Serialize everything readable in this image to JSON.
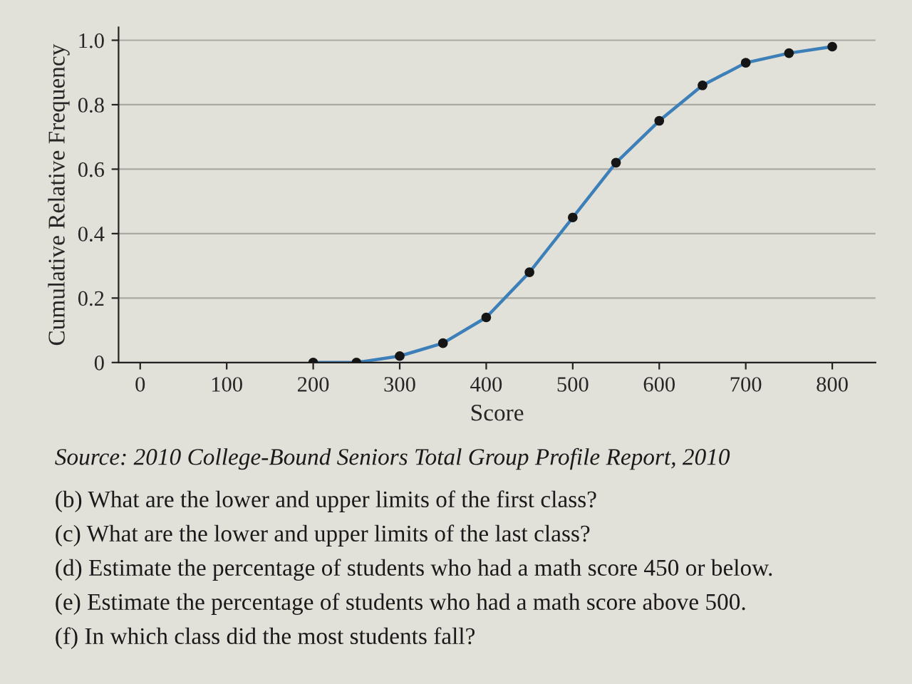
{
  "chart_data": {
    "type": "line",
    "xlabel": "Score",
    "ylabel": "Cumulative Relative Frequency",
    "x": [
      200,
      250,
      300,
      350,
      400,
      450,
      500,
      550,
      600,
      650,
      700,
      750,
      800
    ],
    "series": [
      {
        "color": "#3d7fb8",
        "colors": [
          "#151515",
          "#151515",
          "#151515",
          "#151515",
          "#151515",
          "#151515",
          "#151515",
          "#151515",
          "#151515",
          "#151515",
          "#151515",
          "#151515",
          "#151515"
        ],
        "values": [
          0,
          0,
          0.02,
          0.06,
          0.14,
          0.28,
          0.45,
          0.62,
          0.75,
          0.86,
          0.93,
          0.96,
          0.98
        ]
      }
    ],
    "xlim": [
      -25,
      850
    ],
    "xticks": [
      0,
      100,
      200,
      300,
      400,
      500,
      600,
      700,
      800
    ],
    "ylim": [
      0,
      1.04
    ],
    "yticks": [
      0,
      0.2,
      0.4,
      0.6,
      0.8,
      {
        "value": 1,
        "label": "1.0"
      }
    ],
    "grid": "y",
    "marker": "circle",
    "line_style": "solid",
    "annotations": [
      "Source: 2010 College-Bound Seniors Total Group Profile Report, 2010",
      "(b) What are the lower and upper limits of the first class?",
      "(c) What are the lower and upper limits of the last class?",
      "(d) Estimate the percentage of students who had a math score 450 or below.",
      "(e) Estimate the percentage of students who had a math score above 500.",
      "(f) In which class did the most students fall?"
    ]
  }
}
